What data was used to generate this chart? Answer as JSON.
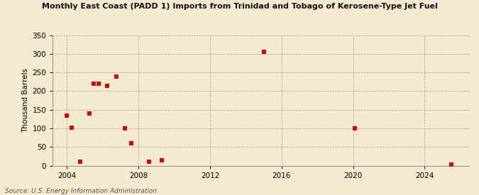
{
  "title": "Monthly East Coast (PADD 1) Imports from Trinidad and Tobago of Kerosene-Type Jet Fuel",
  "ylabel": "Thousand Barrels",
  "source": "Source: U.S. Energy Information Administration",
  "background_color": "#f5ead0",
  "plot_background_color": "#f5ead0",
  "marker_color": "#cc0000",
  "marker": "s",
  "marker_size": 5,
  "ylim": [
    0,
    350
  ],
  "yticks": [
    0,
    50,
    100,
    150,
    200,
    250,
    300,
    350
  ],
  "xlim": [
    2003.2,
    2026.5
  ],
  "xticks": [
    2004,
    2008,
    2012,
    2016,
    2020,
    2024
  ],
  "data_points": [
    [
      2004.0,
      135
    ],
    [
      2004.25,
      103
    ],
    [
      2004.75,
      10
    ],
    [
      2005.25,
      140
    ],
    [
      2005.5,
      220
    ],
    [
      2005.75,
      220
    ],
    [
      2006.25,
      215
    ],
    [
      2006.75,
      238
    ],
    [
      2007.25,
      100
    ],
    [
      2007.6,
      60
    ],
    [
      2008.6,
      10
    ],
    [
      2009.3,
      15
    ],
    [
      2015.0,
      305
    ],
    [
      2020.1,
      100
    ],
    [
      2025.5,
      3
    ]
  ]
}
